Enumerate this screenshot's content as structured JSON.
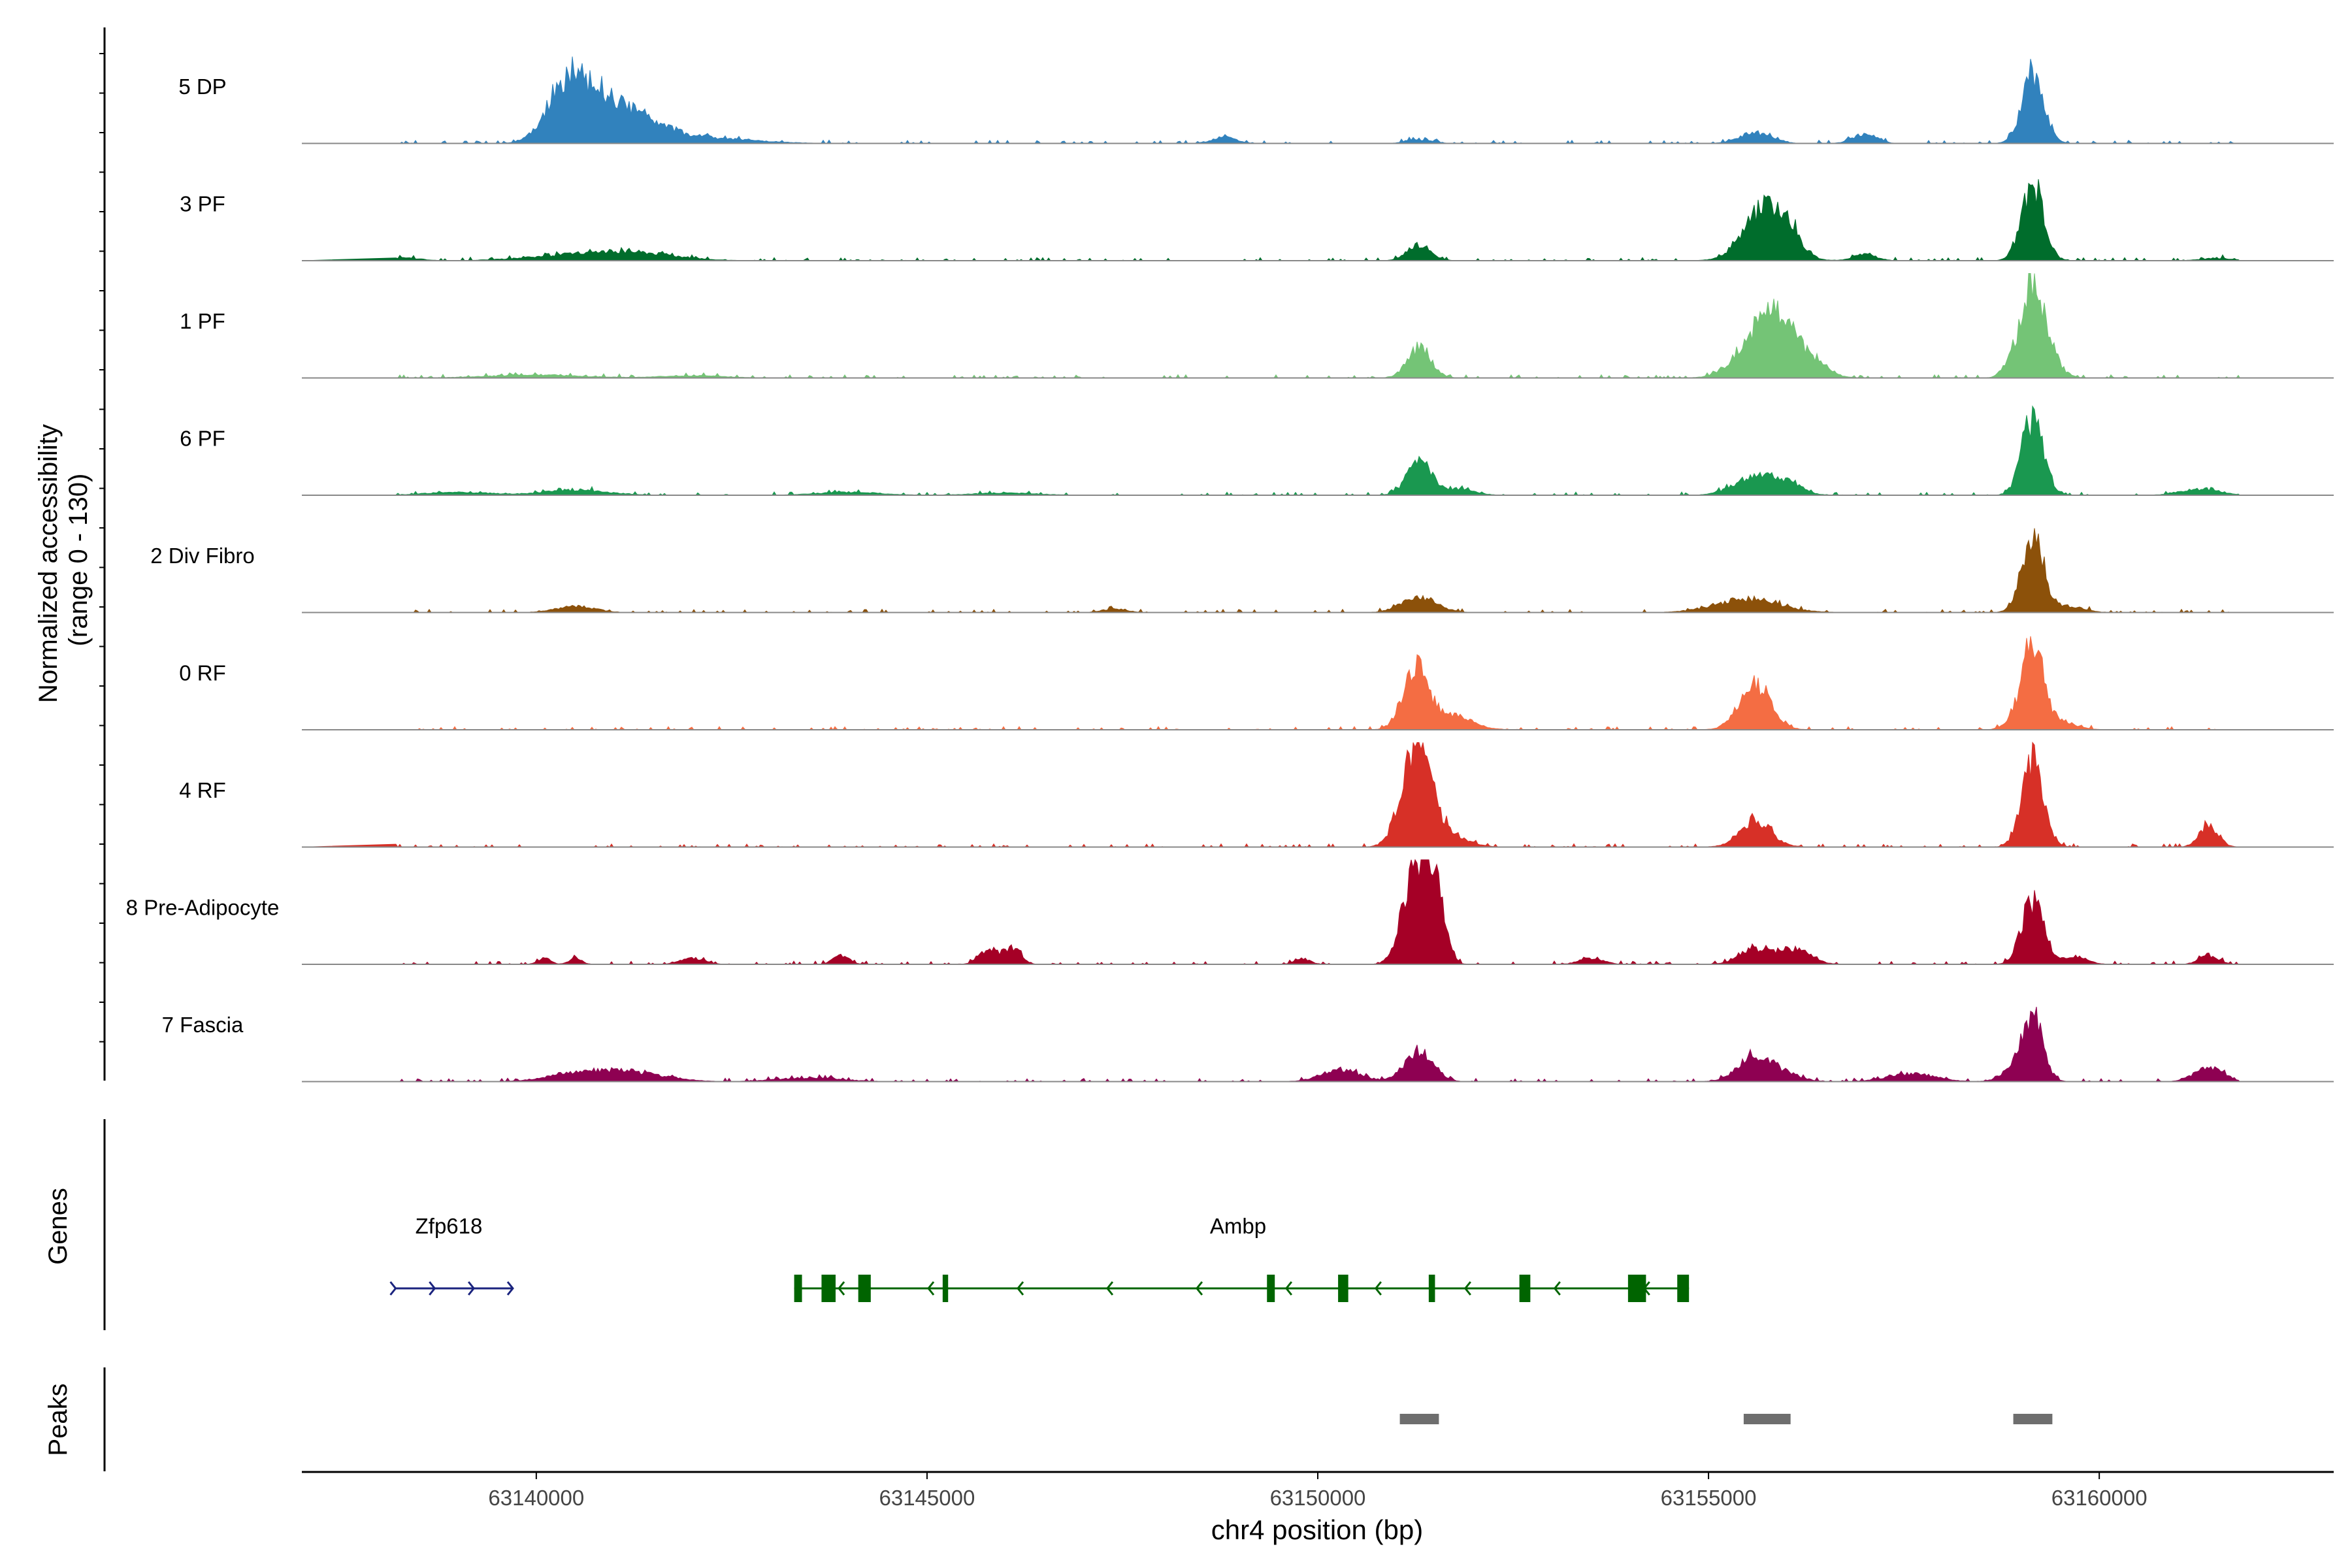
{
  "chart_data": [
    {
      "type": "area",
      "title": "",
      "ylabel_line1": "Normalized accessibility",
      "ylabel_line2": "(range 0 - 130)",
      "ylim": [
        0,
        130
      ],
      "xlim": [
        63137000,
        63163000
      ],
      "grid": false,
      "tracks": [
        {
          "name": "5 DP",
          "color": "#3182BD",
          "peaks": [
            [
              63140300,
              48,
              220
            ],
            [
              63140600,
              45,
              260
            ],
            [
              63141000,
              38,
              400
            ],
            [
              63141500,
              12,
              500
            ],
            [
              63142500,
              4,
              500
            ],
            [
              63148800,
              8,
              150
            ],
            [
              63151300,
              5,
              150
            ],
            [
              63155600,
              14,
              200
            ],
            [
              63157000,
              12,
              150
            ],
            [
              63159150,
              92,
              140
            ]
          ]
        },
        {
          "name": "3 PF",
          "color": "#006D2C",
          "peaks": [
            [
              63138300,
              4,
              200
            ],
            [
              63140500,
              7,
              600
            ],
            [
              63141300,
              9,
              500
            ],
            [
              63151300,
              20,
              150
            ],
            [
              63155700,
              65,
              260
            ],
            [
              63156000,
              28,
              180
            ],
            [
              63157000,
              8,
              150
            ],
            [
              63159150,
              100,
              140
            ],
            [
              63161500,
              3,
              200
            ]
          ]
        },
        {
          "name": "1 PF",
          "color": "#74C476",
          "peaks": [
            [
              63140000,
              4,
              600
            ],
            [
              63142000,
              3,
              400
            ],
            [
              63151300,
              40,
              150
            ],
            [
              63155600,
              50,
              260
            ],
            [
              63155900,
              62,
              200
            ],
            [
              63156300,
              25,
              200
            ],
            [
              63158900,
              20,
              120
            ],
            [
              63159150,
              110,
              140
            ],
            [
              63159350,
              25,
              150
            ]
          ]
        },
        {
          "name": "6 PF",
          "color": "#1A9850",
          "peaks": [
            [
              63139000,
              4,
              400
            ],
            [
              63140500,
              7,
              400
            ],
            [
              63144000,
              4,
              400
            ],
            [
              63146000,
              3,
              400
            ],
            [
              63151300,
              42,
              160
            ],
            [
              63151800,
              8,
              200
            ],
            [
              63155600,
              25,
              260
            ],
            [
              63156000,
              12,
              200
            ],
            [
              63159150,
              100,
              140
            ],
            [
              63161300,
              8,
              250
            ]
          ]
        },
        {
          "name": "2 Div Fibro",
          "color": "#8C510A",
          "peaks": [
            [
              63140500,
              8,
              250
            ],
            [
              63147400,
              5,
              150
            ],
            [
              63151300,
              20,
              220
            ],
            [
              63155500,
              18,
              400
            ],
            [
              63159150,
              95,
              140
            ],
            [
              63159600,
              8,
              200
            ]
          ]
        },
        {
          "name": "0 RF",
          "color": "#F46D43",
          "peaks": [
            [
              63151250,
              80,
              160
            ],
            [
              63151700,
              20,
              250
            ],
            [
              63155600,
              60,
              200
            ],
            [
              63158900,
              12,
              120
            ],
            [
              63159150,
              110,
              130
            ],
            [
              63159500,
              10,
              200
            ]
          ]
        },
        {
          "name": "4 RF",
          "color": "#D73027",
          "peaks": [
            [
              63151250,
              130,
              180
            ],
            [
              63151600,
              20,
              250
            ],
            [
              63155600,
              35,
              200
            ],
            [
              63159150,
              110,
              140
            ],
            [
              63161400,
              28,
              120
            ]
          ]
        },
        {
          "name": "8 Pre-Adipocyte",
          "color": "#A50026",
          "peaks": [
            [
              63140100,
              8,
              80
            ],
            [
              63140500,
              8,
              80
            ],
            [
              63142000,
              8,
              150
            ],
            [
              63143900,
              12,
              100
            ],
            [
              63145800,
              20,
              120
            ],
            [
              63146100,
              22,
              100
            ],
            [
              63149800,
              8,
              100
            ],
            [
              63151250,
              125,
              160
            ],
            [
              63151500,
              90,
              120
            ],
            [
              63153500,
              8,
              150
            ],
            [
              63155600,
              20,
              200
            ],
            [
              63156100,
              20,
              200
            ],
            [
              63159150,
              85,
              140
            ],
            [
              63159700,
              10,
              150
            ],
            [
              63161400,
              12,
              120
            ]
          ]
        },
        {
          "name": "7 Fascia",
          "color": "#8E0152",
          "peaks": [
            [
              63140600,
              12,
              400
            ],
            [
              63141300,
              10,
              400
            ],
            [
              63143500,
              5,
              400
            ],
            [
              63150300,
              15,
              250
            ],
            [
              63151300,
              40,
              180
            ],
            [
              63155600,
              32,
              220
            ],
            [
              63156000,
              8,
              200
            ],
            [
              63157600,
              10,
              300
            ],
            [
              63158900,
              15,
              150
            ],
            [
              63159150,
              85,
              130
            ],
            [
              63161400,
              18,
              180
            ]
          ]
        }
      ]
    },
    {
      "type": "gene-annotation",
      "ylabel": "Genes",
      "genes": [
        {
          "name": "Zfp618",
          "start": 63138200,
          "end": 63139700,
          "strand": "+",
          "color": "#1A237E",
          "exons": []
        },
        {
          "name": "Ambp",
          "start": 63143300,
          "end": 63154750,
          "strand": "-",
          "color": "#006400",
          "exons": [
            [
              63143300,
              63143400
            ],
            [
              63143650,
              63143830
            ],
            [
              63144120,
              63144280
            ],
            [
              63145200,
              63145270
            ],
            [
              63149350,
              63149450
            ],
            [
              63150260,
              63150390
            ],
            [
              63151420,
              63151500
            ],
            [
              63152580,
              63152720
            ],
            [
              63153970,
              63154200
            ],
            [
              63154600,
              63154750
            ]
          ]
        }
      ]
    },
    {
      "type": "peak-annotation",
      "ylabel": "Peaks",
      "xlabel": "chr4 position (bp)",
      "xticks": [
        63140000,
        63145000,
        63150000,
        63155000,
        63160000
      ],
      "xtick_labels": [
        "63140000",
        "63145000",
        "63150000",
        "63155000",
        "63160000"
      ],
      "color": "#6E6E6E",
      "peaks": [
        [
          63151050,
          63151550
        ],
        [
          63155450,
          63156050
        ],
        [
          63158900,
          63159400
        ]
      ]
    }
  ]
}
